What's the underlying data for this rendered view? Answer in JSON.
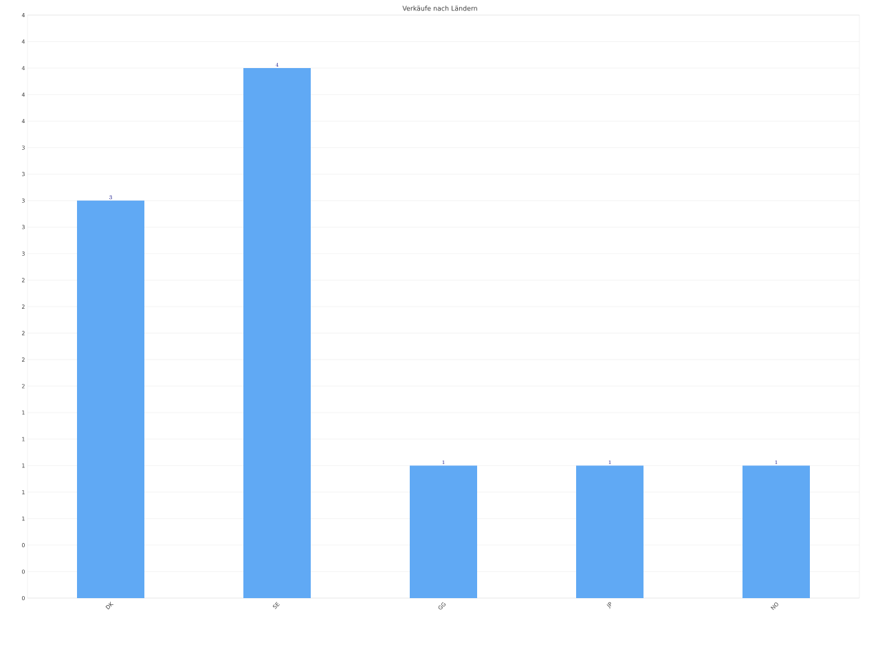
{
  "chart_data": {
    "type": "bar",
    "title": "Verkäufe nach Ländern",
    "categories": [
      "DK",
      "SE",
      "GG",
      "JP",
      "NO"
    ],
    "values": [
      3,
      4,
      1,
      1,
      1
    ],
    "color": "#60a9f4",
    "ylim": [
      0,
      4.4
    ],
    "yticks": [
      0,
      {
        "value": 0.2,
        "label": "0"
      },
      {
        "value": 0.4,
        "label": "0"
      },
      {
        "value": 0.6,
        "label": "1"
      },
      {
        "value": 0.8,
        "label": "1"
      },
      1,
      {
        "value": 1.2,
        "label": "1"
      },
      {
        "value": 1.4,
        "label": "1"
      },
      {
        "value": 1.6,
        "label": "2"
      },
      {
        "value": 1.8,
        "label": "2"
      },
      2,
      {
        "value": 2.2,
        "label": "2"
      },
      {
        "value": 2.4,
        "label": "2"
      },
      {
        "value": 2.6,
        "label": "3"
      },
      {
        "value": 2.8,
        "label": "3"
      },
      3,
      {
        "value": 3.2,
        "label": "3"
      },
      {
        "value": 3.4,
        "label": "3"
      },
      {
        "value": 3.6,
        "label": "4"
      },
      {
        "value": 3.8,
        "label": "4"
      },
      4,
      {
        "value": 4.2,
        "label": "4"
      },
      {
        "value": 4.4,
        "label": "4"
      }
    ],
    "grid": "y",
    "data_labels": true
  }
}
